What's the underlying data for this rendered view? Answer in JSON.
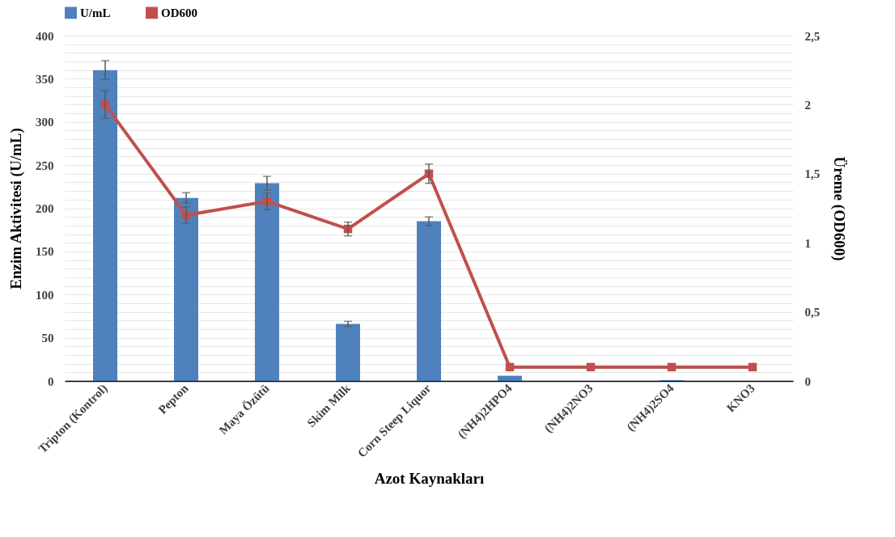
{
  "chart_data": {
    "type": "bar",
    "xlabel": "Azot Kaynakları",
    "ylabel": "Enzim Aktivitesi (U/mL)",
    "y2label": "Üreme (OD600)",
    "categories": [
      "Tripton (Kontrol)",
      "Pepton",
      "Maya Özütü",
      "Skim Milk",
      "Corn Steep Liquor",
      "(NH4)2HPO4",
      "(NH4)2NO3",
      "(NH4)2SO4",
      "KNO3"
    ],
    "series": [
      {
        "name": "U/mL",
        "color": "#4f81bd",
        "values": [
          360,
          212,
          229,
          66,
          185,
          6,
          0,
          1,
          0
        ],
        "errors": [
          11,
          6,
          8,
          3,
          5,
          null,
          null,
          null,
          null
        ]
      },
      {
        "name": "OD600",
        "type": "line",
        "axis": "y2",
        "color": "#c0504d",
        "marker": "square",
        "values": [
          2.0,
          1.2,
          1.3,
          1.1,
          1.5,
          0.1,
          0.1,
          0.1,
          0.1
        ],
        "errors": [
          0.1,
          0.06,
          0.06,
          0.05,
          0.07,
          null,
          null,
          null,
          null
        ]
      }
    ],
    "ylim": [
      0,
      400
    ],
    "yticks": [
      0,
      {
        "value": 10,
        "label": null
      },
      {
        "value": 20,
        "label": null
      },
      {
        "value": 30,
        "label": null
      },
      {
        "value": 40,
        "label": null
      },
      50,
      {
        "value": 60,
        "label": null
      },
      {
        "value": 70,
        "label": null
      },
      {
        "value": 80,
        "label": null
      },
      {
        "value": 90,
        "label": null
      },
      100,
      {
        "value": 110,
        "label": null
      },
      {
        "value": 120,
        "label": null
      },
      {
        "value": 130,
        "label": null
      },
      {
        "value": 140,
        "label": null
      },
      150,
      {
        "value": 160,
        "label": null
      },
      {
        "value": 170,
        "label": null
      },
      {
        "value": 180,
        "label": null
      },
      {
        "value": 190,
        "label": null
      },
      200,
      {
        "value": 210,
        "label": null
      },
      {
        "value": 220,
        "label": null
      },
      {
        "value": 230,
        "label": null
      },
      {
        "value": 240,
        "label": null
      },
      250,
      {
        "value": 260,
        "label": null
      },
      {
        "value": 270,
        "label": null
      },
      {
        "value": 280,
        "label": null
      },
      {
        "value": 290,
        "label": null
      },
      300,
      {
        "value": 310,
        "label": null
      },
      {
        "value": 320,
        "label": null
      },
      {
        "value": 330,
        "label": null
      },
      {
        "value": 340,
        "label": null
      },
      350,
      {
        "value": 360,
        "label": null
      },
      {
        "value": 370,
        "label": null
      },
      {
        "value": 380,
        "label": null
      },
      {
        "value": 390,
        "label": null
      },
      400
    ],
    "y2lim": [
      0,
      2.5
    ],
    "y2ticks": [
      0,
      {
        "value": 0.5,
        "label": "0,5"
      },
      1,
      {
        "value": 1.5,
        "label": "1,5"
      },
      2,
      {
        "value": 2.5,
        "label": "2,5"
      }
    ],
    "grid": "y",
    "legend": "top"
  }
}
